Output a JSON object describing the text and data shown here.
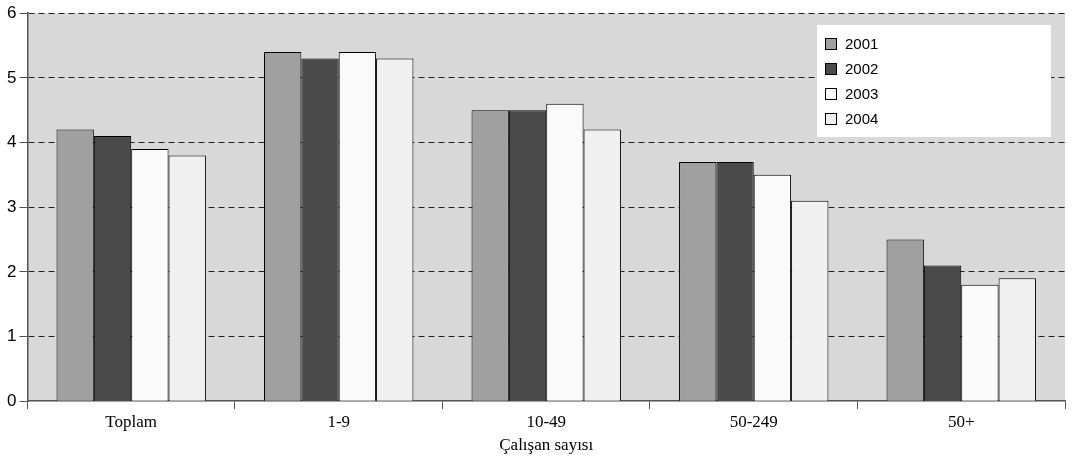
{
  "chart_data": {
    "type": "bar",
    "xlabel": "Çalışan sayısı",
    "categories": [
      "Toplam",
      "1-9",
      "10-49",
      "50-249",
      "50+"
    ],
    "series": [
      {
        "name": "2001",
        "color": "#a0a0a0",
        "values": [
          4.2,
          5.4,
          4.5,
          3.7,
          2.5
        ]
      },
      {
        "name": "2002",
        "color": "#4a4a4a",
        "values": [
          4.1,
          5.3,
          4.5,
          3.7,
          2.1
        ]
      },
      {
        "name": "2003",
        "color": "#fafafa",
        "values": [
          3.9,
          5.4,
          4.6,
          3.5,
          1.8
        ]
      },
      {
        "name": "2004",
        "color": "#f0f0f0",
        "values": [
          3.8,
          5.3,
          4.2,
          3.1,
          1.9
        ]
      }
    ],
    "ylim": [
      0,
      6
    ],
    "yticks": [
      0,
      1,
      2,
      3,
      4,
      5,
      6
    ],
    "grid": "y",
    "legend": "top right",
    "line_style": "dashed"
  }
}
